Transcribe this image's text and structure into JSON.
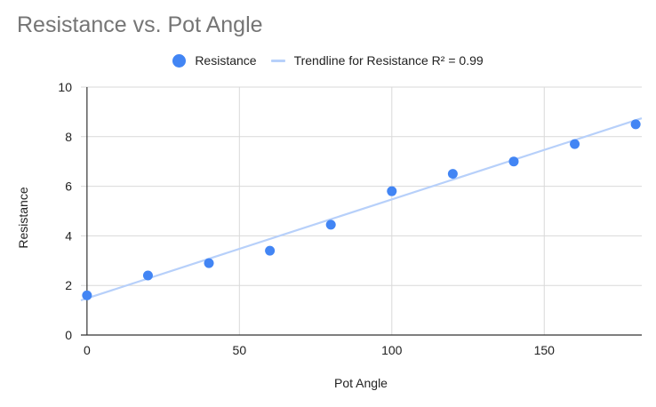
{
  "chart_data": {
    "type": "scatter",
    "title": "Resistance vs. Pot Angle",
    "xlabel": "Pot Angle",
    "ylabel": "Resistance",
    "xlim": [
      -2,
      182
    ],
    "ylim": [
      0,
      10
    ],
    "x_ticks": [
      0,
      50,
      100,
      150
    ],
    "y_ticks": [
      0,
      2,
      4,
      6,
      8,
      10
    ],
    "grid": true,
    "legend_position": "top",
    "series": [
      {
        "name": "Resistance",
        "color": "#4285f4",
        "x": [
          0,
          20,
          40,
          60,
          80,
          100,
          120,
          140,
          160,
          180
        ],
        "y": [
          1.6,
          2.4,
          2.9,
          3.4,
          4.45,
          5.8,
          6.5,
          7.0,
          7.7,
          8.5
        ]
      }
    ],
    "trendline": {
      "name": "Trendline for Resistance R² = 0.99",
      "color": "#b7d0fa",
      "slope": 0.0399,
      "intercept": 1.48,
      "x_range": [
        -2,
        182
      ]
    }
  }
}
